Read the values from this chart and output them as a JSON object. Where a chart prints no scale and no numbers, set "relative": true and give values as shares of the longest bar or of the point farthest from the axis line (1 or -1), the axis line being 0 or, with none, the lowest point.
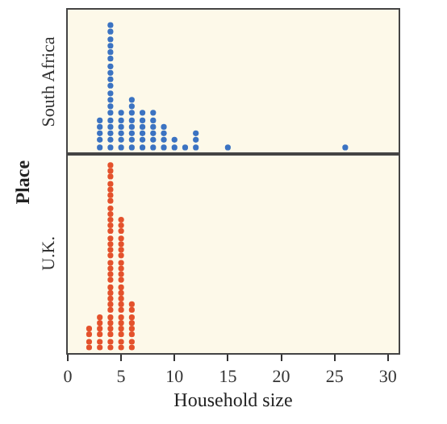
{
  "chart_data": [
    {
      "type": "scatter",
      "ylabel": "South Africa",
      "annotations": [
        "Place"
      ],
      "color": "#3b73c2",
      "marker": "circle",
      "tick_labels": false,
      "grid": false,
      "relative": true,
      "xlim": [
        0,
        31
      ],
      "xticks": [
        0,
        5,
        10,
        15,
        20,
        25,
        30
      ],
      "x": [
        3,
        3,
        3,
        3,
        3,
        4,
        4,
        4,
        4,
        4,
        4,
        4,
        4,
        4,
        4,
        4,
        4,
        4,
        4,
        4,
        4,
        4,
        4,
        4,
        5,
        5,
        5,
        5,
        5,
        5,
        6,
        6,
        6,
        6,
        6,
        6,
        6,
        6,
        7,
        7,
        7,
        7,
        7,
        7,
        8,
        8,
        8,
        8,
        8,
        8,
        9,
        9,
        9,
        9,
        10,
        10,
        11,
        12,
        12,
        12,
        15,
        26
      ],
      "values": [
        0.05,
        0.11,
        0.16,
        0.21,
        0.26,
        0.05,
        0.11,
        0.16,
        0.21,
        0.26,
        0.32,
        0.37,
        0.42,
        0.47,
        0.53,
        0.58,
        0.63,
        0.68,
        0.74,
        0.79,
        0.84,
        0.89,
        0.95,
        1,
        0.05,
        0.11,
        0.16,
        0.21,
        0.26,
        0.32,
        0.05,
        0.11,
        0.16,
        0.21,
        0.26,
        0.32,
        0.37,
        0.42,
        0.05,
        0.11,
        0.16,
        0.21,
        0.26,
        0.32,
        0.05,
        0.11,
        0.16,
        0.21,
        0.26,
        0.32,
        0.05,
        0.11,
        0.16,
        0.21,
        0.05,
        0.11,
        0.05,
        0.05,
        0.11,
        0.16,
        0.05,
        0.05
      ]
    },
    {
      "type": "scatter",
      "ylabel": "U.K.",
      "xlabel": "Household size",
      "color": "#e4522c",
      "marker": "circle",
      "tick_labels": "x",
      "grid": false,
      "relative": true,
      "xlim": [
        0,
        31
      ],
      "xticks": [
        0,
        5,
        10,
        15,
        20,
        25,
        30
      ],
      "x": [
        2,
        2,
        2,
        2,
        3,
        3,
        3,
        3,
        3,
        3,
        4,
        4,
        4,
        4,
        4,
        4,
        4,
        4,
        4,
        4,
        4,
        4,
        4,
        4,
        4,
        4,
        4,
        4,
        4,
        4,
        4,
        4,
        4,
        4,
        4,
        4,
        4,
        4,
        4,
        4,
        4,
        5,
        5,
        5,
        5,
        5,
        5,
        5,
        5,
        5,
        5,
        5,
        5,
        5,
        5,
        5,
        5,
        5,
        5,
        5,
        5,
        5,
        5,
        6,
        6,
        6,
        6,
        6,
        6,
        6,
        6
      ],
      "values": [
        0.03,
        0.06,
        0.1,
        0.13,
        0.03,
        0.06,
        0.1,
        0.13,
        0.16,
        0.19,
        0.03,
        0.06,
        0.1,
        0.13,
        0.16,
        0.19,
        0.23,
        0.26,
        0.29,
        0.32,
        0.35,
        0.39,
        0.42,
        0.45,
        0.48,
        0.52,
        0.55,
        0.58,
        0.61,
        0.65,
        0.68,
        0.71,
        0.74,
        0.77,
        0.81,
        0.84,
        0.87,
        0.9,
        0.94,
        0.97,
        1,
        0.03,
        0.06,
        0.1,
        0.13,
        0.16,
        0.19,
        0.23,
        0.26,
        0.29,
        0.32,
        0.35,
        0.39,
        0.42,
        0.45,
        0.48,
        0.52,
        0.55,
        0.58,
        0.61,
        0.65,
        0.68,
        0.71,
        0.03,
        0.06,
        0.1,
        0.13,
        0.16,
        0.19,
        0.23,
        0.26
      ]
    }
  ]
}
